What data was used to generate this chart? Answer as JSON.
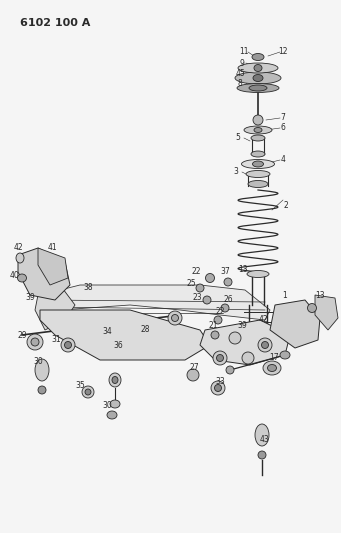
{
  "title": "6102 100 A",
  "bg_color": "#f5f5f5",
  "line_color": "#2a2a2a",
  "title_fontsize": 8,
  "label_fontsize": 5.5,
  "fig_width": 3.41,
  "fig_height": 5.33,
  "dpi": 100
}
